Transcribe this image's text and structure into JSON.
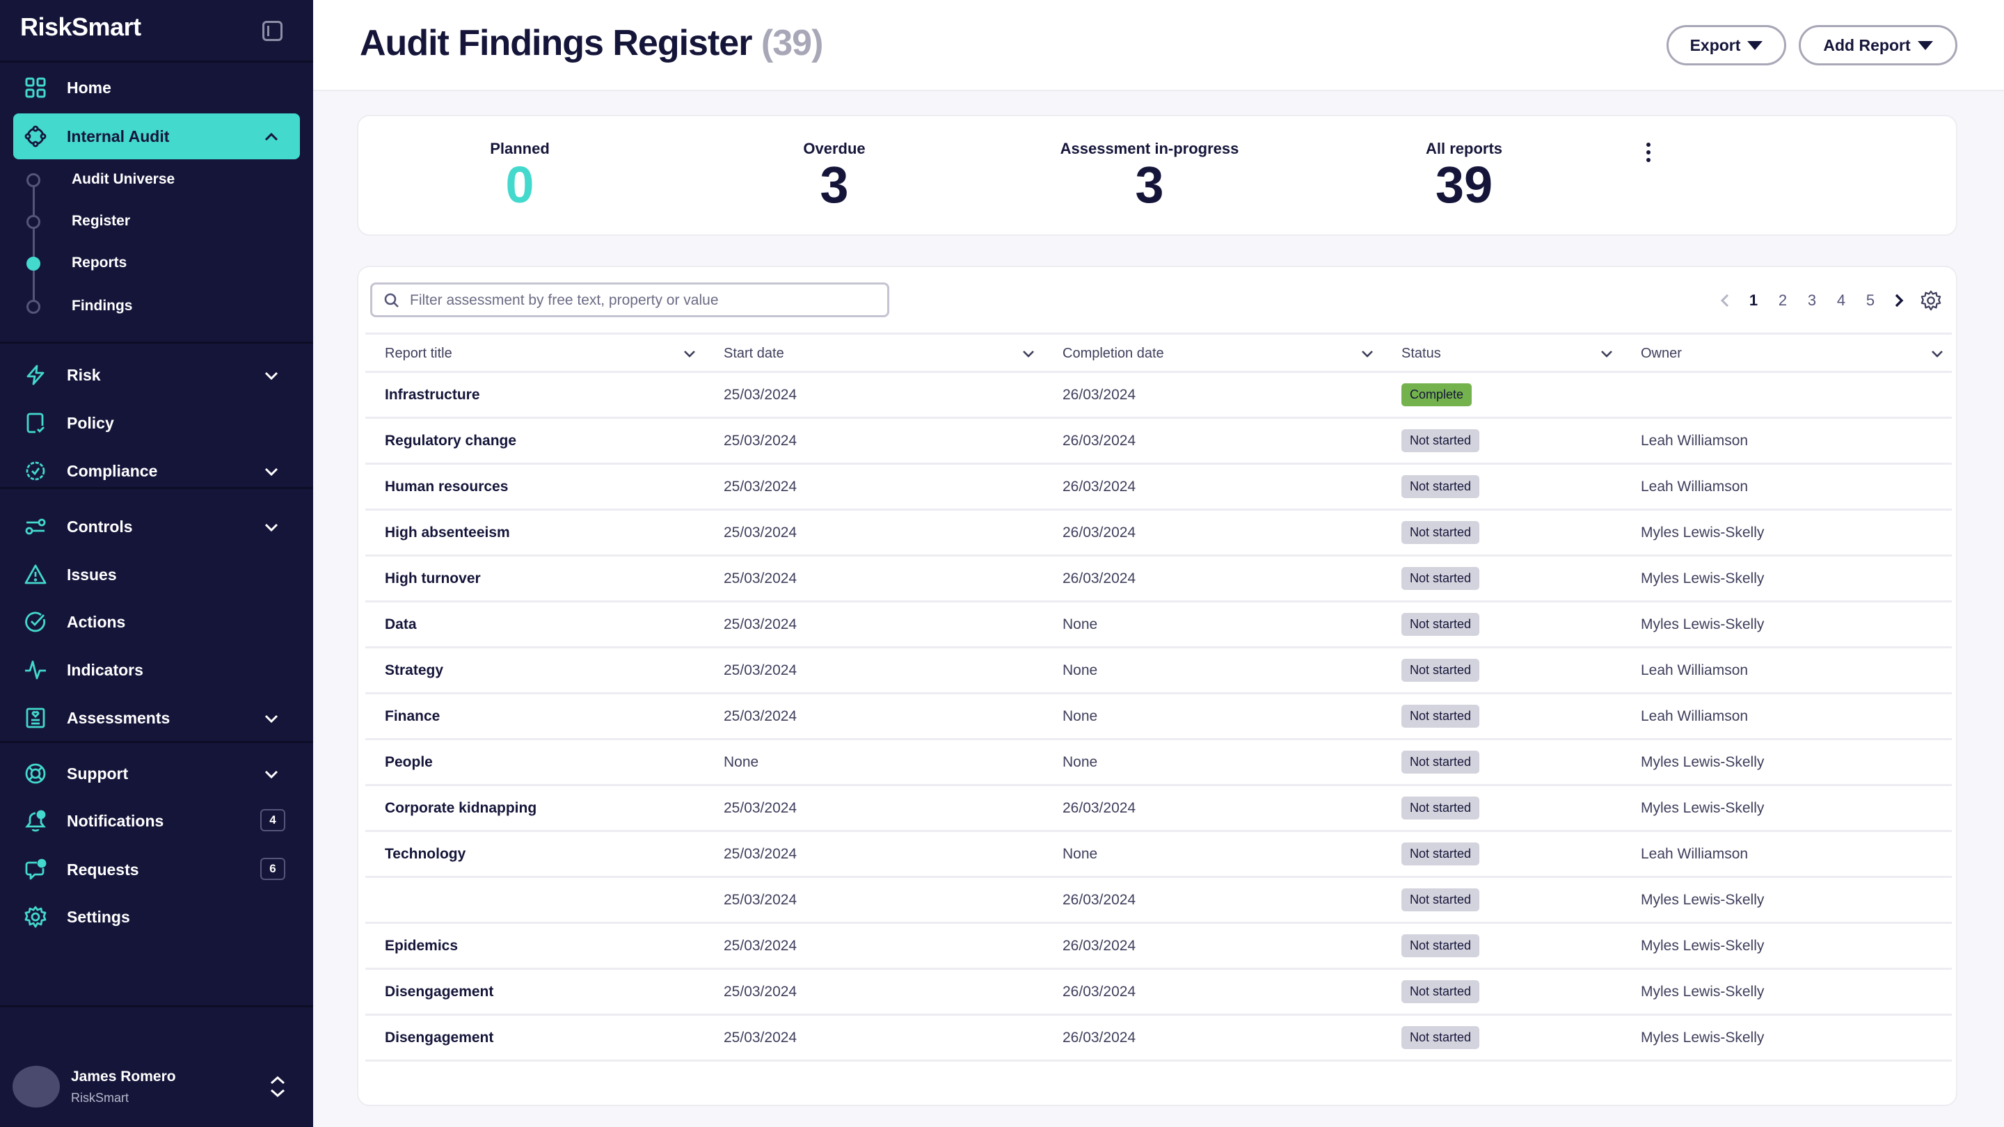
{
  "app": {
    "logo": "RiskSmart",
    "brand_color": "#43d9cc",
    "sidebar_bg": "#15153a"
  },
  "sidebar": {
    "items": [
      {
        "label": "Home",
        "icon": "grid-icon"
      },
      {
        "label": "Internal Audit",
        "icon": "audit-cycle-icon",
        "active": true,
        "expanded": true
      },
      {
        "label": "Risk",
        "icon": "lightning-icon",
        "has_chevron": true
      },
      {
        "label": "Policy",
        "icon": "policy-check-icon"
      },
      {
        "label": "Compliance",
        "icon": "badge-check-icon",
        "has_chevron": true
      },
      {
        "label": "Controls",
        "icon": "toggle-sliders-icon",
        "has_chevron": true
      },
      {
        "label": "Issues",
        "icon": "warning-triangle-icon"
      },
      {
        "label": "Actions",
        "icon": "check-circle-icon"
      },
      {
        "label": "Indicators",
        "icon": "pulse-icon"
      },
      {
        "label": "Assessments",
        "icon": "clipboard-heart-icon",
        "has_chevron": true
      },
      {
        "label": "Support",
        "icon": "lifebuoy-icon",
        "has_chevron": true
      },
      {
        "label": "Notifications",
        "icon": "bell-icon",
        "badge": "4"
      },
      {
        "label": "Requests",
        "icon": "chat-icon",
        "badge": "6"
      },
      {
        "label": "Settings",
        "icon": "gear-icon"
      }
    ],
    "sub_items": [
      {
        "label": "Audit Universe"
      },
      {
        "label": "Register"
      },
      {
        "label": "Reports",
        "current": true
      },
      {
        "label": "Findings"
      }
    ],
    "user": {
      "name": "James Romero",
      "org": "RiskSmart"
    }
  },
  "header": {
    "title": "Audit Findings Register",
    "count": "(39)",
    "export_label": "Export",
    "add_report_label": "Add Report"
  },
  "stats": [
    {
      "label": "Planned",
      "value": "0"
    },
    {
      "label": "Overdue",
      "value": "3"
    },
    {
      "label": "Assessment in-progress",
      "value": "3"
    },
    {
      "label": "All reports",
      "value": "39"
    }
  ],
  "table": {
    "search_placeholder": "Filter assessment by free text, property or value",
    "search_value": "",
    "pagination": {
      "pages": [
        "1",
        "2",
        "3",
        "4",
        "5"
      ],
      "current": "1"
    },
    "columns": [
      "Report title",
      "Start date",
      "Completion date",
      "Status",
      "Owner"
    ],
    "rows": [
      {
        "title": "Infrastructure",
        "start": "25/03/2024",
        "completion": "26/03/2024",
        "status": "Complete",
        "owner": ""
      },
      {
        "title": "Regulatory change",
        "start": "25/03/2024",
        "completion": "26/03/2024",
        "status": "Not started",
        "owner": "Leah Williamson"
      },
      {
        "title": "Human resources",
        "start": "25/03/2024",
        "completion": "26/03/2024",
        "status": "Not started",
        "owner": "Leah Williamson"
      },
      {
        "title": "High absenteeism",
        "start": "25/03/2024",
        "completion": "26/03/2024",
        "status": "Not started",
        "owner": "Myles Lewis-Skelly"
      },
      {
        "title": "High turnover",
        "start": "25/03/2024",
        "completion": "26/03/2024",
        "status": "Not started",
        "owner": "Myles Lewis-Skelly"
      },
      {
        "title": "Data",
        "start": "25/03/2024",
        "completion": "None",
        "status": "Not started",
        "owner": "Myles Lewis-Skelly"
      },
      {
        "title": "Strategy",
        "start": "25/03/2024",
        "completion": "None",
        "status": "Not started",
        "owner": "Leah Williamson"
      },
      {
        "title": "Finance",
        "start": "25/03/2024",
        "completion": "None",
        "status": "Not started",
        "owner": "Leah Williamson"
      },
      {
        "title": "People",
        "start": "None",
        "completion": "None",
        "status": "Not started",
        "owner": "Myles Lewis-Skelly"
      },
      {
        "title": "Corporate kidnapping",
        "start": "25/03/2024",
        "completion": "26/03/2024",
        "status": "Not started",
        "owner": "Myles Lewis-Skelly"
      },
      {
        "title": "Technology",
        "start": "25/03/2024",
        "completion": "None",
        "status": "Not started",
        "owner": "Leah Williamson"
      },
      {
        "title": "",
        "start": "25/03/2024",
        "completion": "26/03/2024",
        "status": "Not started",
        "owner": "Myles Lewis-Skelly"
      },
      {
        "title": "Epidemics",
        "start": "25/03/2024",
        "completion": "26/03/2024",
        "status": "Not started",
        "owner": "Myles Lewis-Skelly"
      },
      {
        "title": "Disengagement",
        "start": "25/03/2024",
        "completion": "26/03/2024",
        "status": "Not started",
        "owner": "Myles Lewis-Skelly"
      },
      {
        "title": "Disengagement",
        "start": "25/03/2024",
        "completion": "26/03/2024",
        "status": "Not started",
        "owner": "Myles Lewis-Skelly"
      }
    ],
    "status_colors": {
      "Complete": "#74b24d",
      "Not started": "#d3d3dd"
    }
  }
}
